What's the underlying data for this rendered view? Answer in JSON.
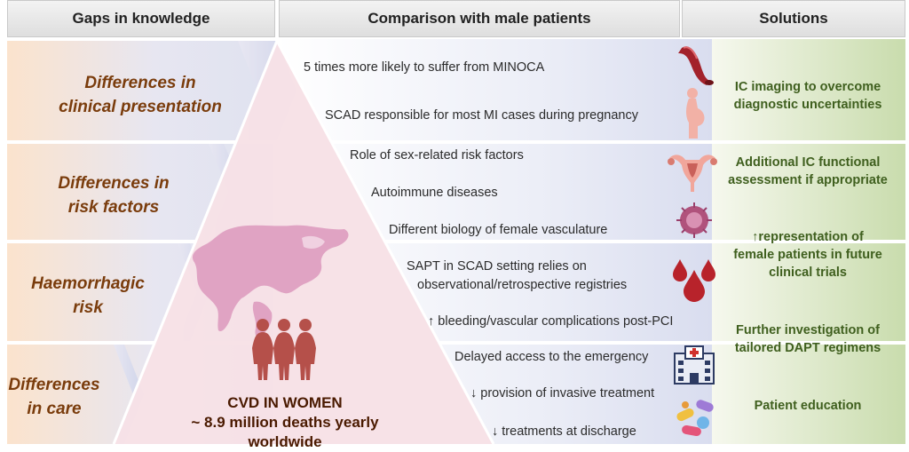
{
  "headers": {
    "gaps": "Gaps in knowledge",
    "comparison": "Comparison with male patients",
    "solutions": "Solutions"
  },
  "gaps": [
    {
      "line1": "Differences in",
      "line2": "clinical presentation"
    },
    {
      "line1": "Differences in",
      "line2": "risk factors"
    },
    {
      "line1": "Haemorrhagic",
      "line2": "risk"
    },
    {
      "line1": "Differences",
      "line2": "in care"
    }
  ],
  "comparisons": [
    "5 times more likely to suffer from MINOCA",
    "SCAD responsible for most MI cases during pregnancy",
    "Role of sex-related risk factors",
    "Autoimmune diseases",
    "Different biology of female vasculature",
    "SAPT in SCAD setting relies on",
    "observational/retrospective registries",
    "↑ bleeding/vascular complications post-PCI",
    "Delayed access to the emergency",
    "↓ provision of invasive treatment",
    "↓ treatments at discharge"
  ],
  "solutions": [
    {
      "line1": "IC imaging to overcome",
      "line2": "diagnostic uncertainties"
    },
    {
      "line1": "Additional IC functional",
      "line2": "assessment if appropriate"
    },
    {
      "line1": "↑representation of",
      "line2": "female patients in future",
      "line3": "clinical trials"
    },
    {
      "line1": "Further investigation of",
      "line2": "tailored DAPT regimens"
    },
    {
      "line1": "Patient education"
    }
  ],
  "center": {
    "line1": "CVD IN WOMEN",
    "line2": "~ 8.9 million deaths yearly worldwide"
  },
  "colors": {
    "gap_text": "#7a3c0c",
    "solution_text": "#3f5f1e",
    "triangle_pink": "#f7e1e6",
    "map_pink": "#e0a3c3",
    "women_icon": "#b5504a",
    "blood_red": "#b8232b"
  },
  "icons": [
    "artery-icon",
    "pregnant-woman-icon",
    "uterus-icon",
    "cell-icon",
    "blood-drops-icon",
    "hospital-icon",
    "pills-icon",
    "world-map-icon",
    "women-group-icon"
  ]
}
